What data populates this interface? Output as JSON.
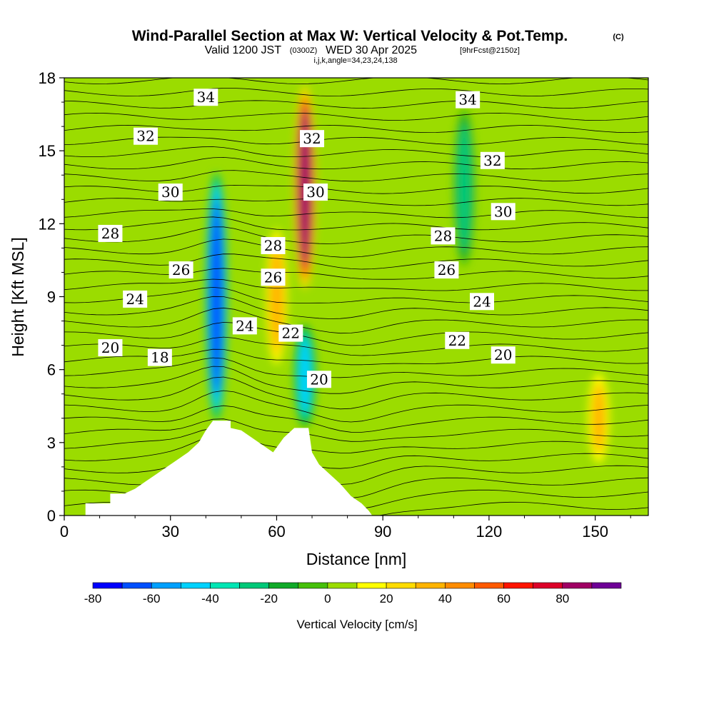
{
  "title": {
    "main": "Wind-Parallel Section at Max W: Vertical Velocity & Pot.Temp.",
    "copyright": "(C)",
    "line2_a": "Valid 1200 JST",
    "line2_b": "(0300Z)",
    "line2_c": "WED 30 Apr 2025",
    "line2_d": "[9hrFcst@2150z]",
    "line3": "i,j,k,angle=34,23,24,138"
  },
  "chart_data": {
    "type": "heatmap",
    "xlabel": "Distance [nm]",
    "ylabel": "Height [Kft MSL]",
    "xlim": [
      0,
      165
    ],
    "ylim": [
      0,
      18
    ],
    "xticks": [
      "0",
      "30",
      "60",
      "90",
      "120",
      "150"
    ],
    "yticks": [
      "0",
      "3",
      "6",
      "9",
      "12",
      "15",
      "18"
    ],
    "colorbar": {
      "title": "Vertical Velocity [cm/s]",
      "tick_labels": [
        "-80",
        "-60",
        "-40",
        "-20",
        "0",
        "20",
        "40",
        "60",
        "80"
      ],
      "levels": [
        -80,
        -70,
        -60,
        -50,
        -40,
        -30,
        -20,
        -10,
        0,
        10,
        20,
        30,
        40,
        50,
        60,
        70,
        80,
        90
      ],
      "colors": [
        "#0000ff",
        "#0050ff",
        "#00a0ff",
        "#00d2ff",
        "#00e6b4",
        "#00c878",
        "#10aa28",
        "#46c00a",
        "#9bdc00",
        "#ffff00",
        "#ffdc00",
        "#ffb400",
        "#ff8c00",
        "#ff5a00",
        "#ff1400",
        "#dc0028",
        "#a00064",
        "#6e0096"
      ]
    },
    "terrain": [
      [
        0,
        0
      ],
      [
        6,
        0
      ],
      [
        6,
        0.5
      ],
      [
        13,
        0.5
      ],
      [
        13,
        0.9
      ],
      [
        17,
        0.9
      ],
      [
        20,
        1.1
      ],
      [
        23,
        1.4
      ],
      [
        26,
        1.7
      ],
      [
        29,
        2.0
      ],
      [
        32,
        2.3
      ],
      [
        35,
        2.6
      ],
      [
        38,
        3.0
      ],
      [
        40,
        3.5
      ],
      [
        42,
        3.9
      ],
      [
        47,
        3.9
      ],
      [
        47,
        3.6
      ],
      [
        50,
        3.5
      ],
      [
        53,
        3.2
      ],
      [
        56,
        2.9
      ],
      [
        59,
        2.6
      ],
      [
        62,
        3.2
      ],
      [
        65,
        3.6
      ],
      [
        69,
        3.6
      ],
      [
        70,
        2.6
      ],
      [
        72,
        2.1
      ],
      [
        75,
        1.7
      ],
      [
        78,
        1.3
      ],
      [
        81,
        0.8
      ],
      [
        84,
        0.5
      ],
      [
        86,
        0.2
      ],
      [
        87,
        0
      ],
      [
        165,
        0
      ]
    ],
    "w_features": [
      {
        "kind": "downdraft",
        "peak_cm_s": -70,
        "x_nm": 43,
        "height_kft": [
          3.5,
          14.5
        ]
      },
      {
        "kind": "updraft",
        "peak_cm_s": 85,
        "x_nm": 68,
        "height_kft": [
          9,
          18
        ]
      },
      {
        "kind": "downdraft",
        "peak_cm_s": -45,
        "x_nm": 68,
        "height_kft": [
          3.5,
          8
        ]
      },
      {
        "kind": "updraft",
        "peak_cm_s": 35,
        "x_nm": 60,
        "height_kft": [
          6,
          12
        ]
      },
      {
        "kind": "updraft",
        "peak_cm_s": 30,
        "x_nm": 151,
        "height_kft": [
          2,
          6
        ]
      },
      {
        "kind": "downdraft",
        "peak_cm_s": -25,
        "x_nm": 113,
        "height_kft": [
          10,
          17
        ]
      }
    ],
    "contour_labels": [
      {
        "text": "34",
        "x": 40,
        "y": 17.2
      },
      {
        "text": "32",
        "x": 23,
        "y": 15.6
      },
      {
        "text": "30",
        "x": 30,
        "y": 13.3
      },
      {
        "text": "28",
        "x": 13,
        "y": 11.6
      },
      {
        "text": "26",
        "x": 33,
        "y": 10.1
      },
      {
        "text": "24",
        "x": 20,
        "y": 8.9
      },
      {
        "text": "20",
        "x": 13,
        "y": 6.9
      },
      {
        "text": "18",
        "x": 27,
        "y": 6.5
      },
      {
        "text": "32",
        "x": 70,
        "y": 15.5
      },
      {
        "text": "30",
        "x": 71,
        "y": 13.3
      },
      {
        "text": "28",
        "x": 59,
        "y": 11.1
      },
      {
        "text": "26",
        "x": 59,
        "y": 9.8
      },
      {
        "text": "24",
        "x": 51,
        "y": 7.8
      },
      {
        "text": "22",
        "x": 64,
        "y": 7.5
      },
      {
        "text": "20",
        "x": 72,
        "y": 5.6
      },
      {
        "text": "34",
        "x": 114,
        "y": 17.1
      },
      {
        "text": "32",
        "x": 121,
        "y": 14.6
      },
      {
        "text": "30",
        "x": 124,
        "y": 12.5
      },
      {
        "text": "28",
        "x": 107,
        "y": 11.5
      },
      {
        "text": "26",
        "x": 108,
        "y": 10.1
      },
      {
        "text": "24",
        "x": 118,
        "y": 8.8
      },
      {
        "text": "22",
        "x": 111,
        "y": 7.2
      },
      {
        "text": "20",
        "x": 124,
        "y": 6.6
      }
    ]
  }
}
